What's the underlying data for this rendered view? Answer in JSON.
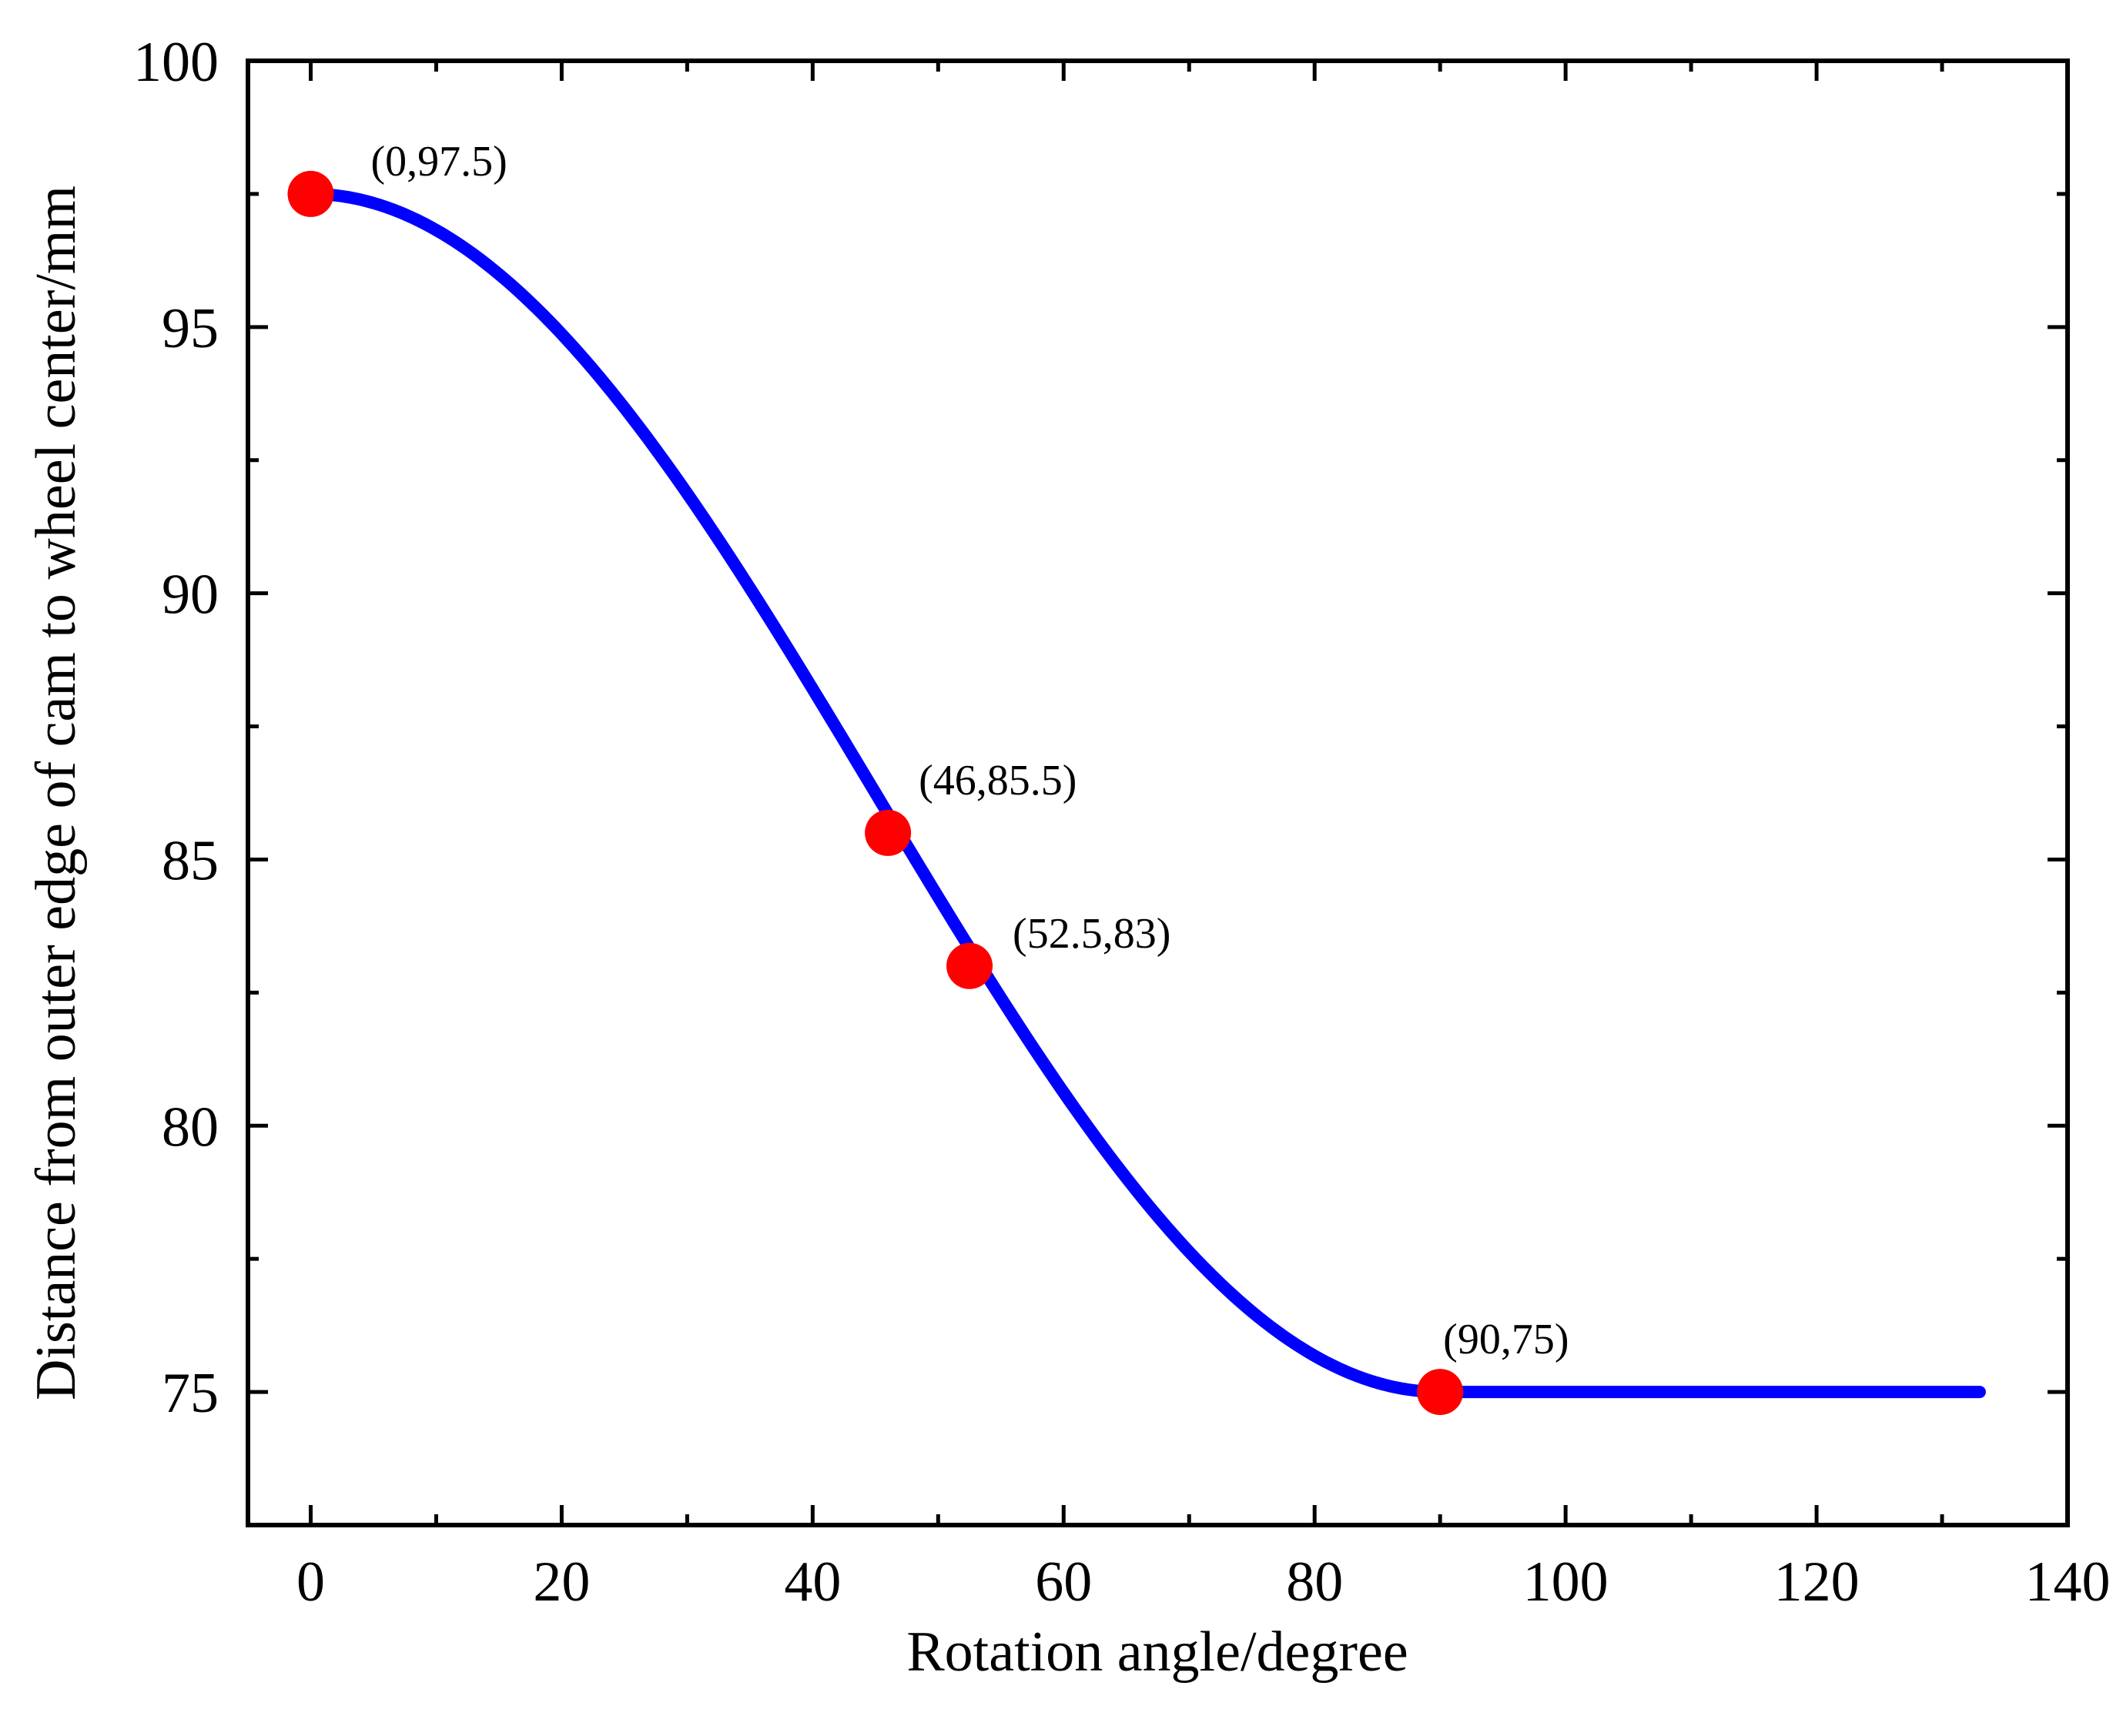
{
  "chart_data": {
    "type": "line",
    "title": "",
    "xlabel": "Rotation angle/degree",
    "ylabel": "Distance from outer edge of cam to wheel center/mm",
    "xlim": [
      -5,
      140
    ],
    "ylim": [
      72.5,
      100
    ],
    "xticks": [
      0,
      20,
      40,
      60,
      80,
      100,
      120,
      140
    ],
    "xtick_labels": [
      "0",
      "20",
      "40",
      "60",
      "80",
      "100",
      "120",
      "140"
    ],
    "yticks": [
      75,
      80,
      85,
      90,
      95,
      100
    ],
    "ytick_labels": [
      "75",
      "80",
      "85",
      "90",
      "95",
      "100"
    ],
    "grid": false,
    "curve": {
      "description": "cosine-shaped fall from 97.5 at 0 deg to 75 at 90 deg, then constant 75 to 133 deg",
      "color": "#0000ff",
      "x_range": [
        0,
        133
      ],
      "y_start": 97.5,
      "y_end": 75,
      "transition_end_x": 90
    },
    "points": [
      {
        "x": 0,
        "y": 97.5,
        "label": "(0,97.5)"
      },
      {
        "x": 46,
        "y": 85.5,
        "label": "(46,85.5)"
      },
      {
        "x": 52.5,
        "y": 83,
        "label": "(52.5,83)"
      },
      {
        "x": 90,
        "y": 75,
        "label": "(90,75)"
      }
    ],
    "point_color": "#ff0000"
  }
}
